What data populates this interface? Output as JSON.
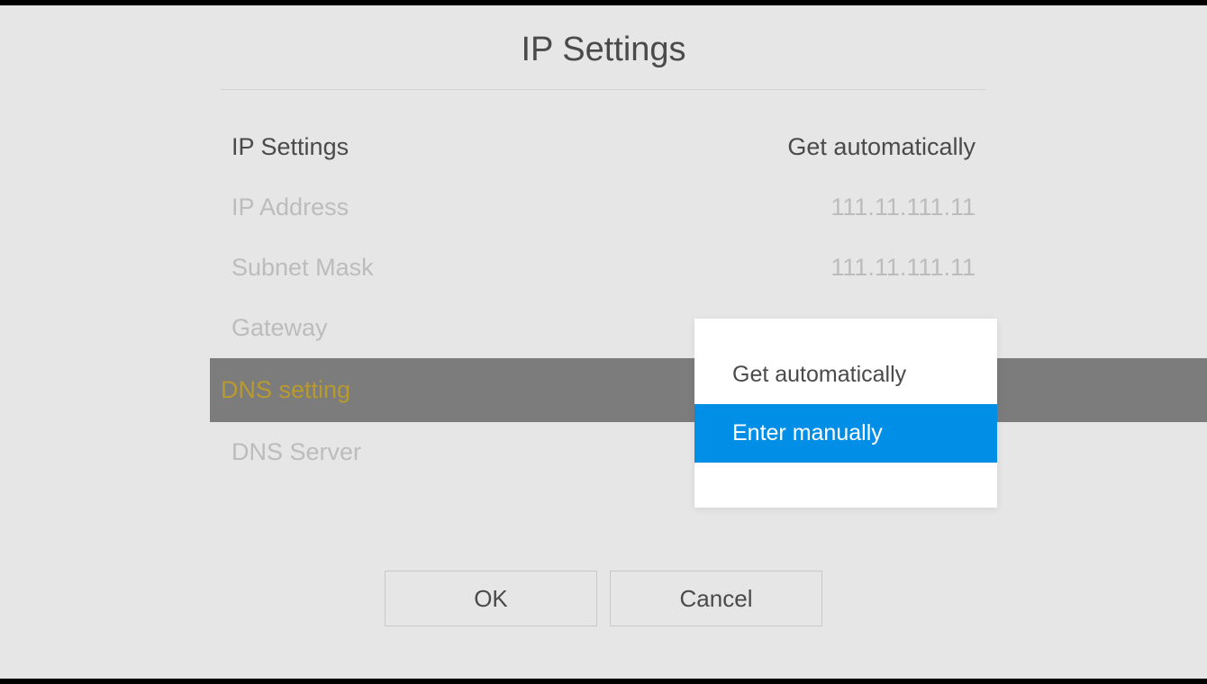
{
  "title": "IP Settings",
  "colors": {
    "page_background": "#e6e6e6",
    "top_bar": "#000000",
    "text_primary": "#4a4a4a",
    "text_disabled": "#bcbcbc",
    "selected_row_bg": "#7c7c7c",
    "selected_row_text": "#b89a2e",
    "dropdown_bg": "#ffffff",
    "dropdown_selected_bg": "#008ee6",
    "dropdown_selected_text": "#ffffff",
    "divider": "#d4d4d4",
    "button_border": "#c8c8c8"
  },
  "rows": {
    "ip_settings": {
      "label": "IP Settings",
      "value": "Get automatically",
      "state": "active"
    },
    "ip_address": {
      "label": "IP Address",
      "value": "111.11.111.11",
      "state": "inactive"
    },
    "subnet_mask": {
      "label": "Subnet Mask",
      "value": "111.11.111.11",
      "state": "inactive"
    },
    "gateway": {
      "label": "Gateway",
      "value": "",
      "state": "inactive"
    },
    "dns_setting": {
      "label": "DNS setting",
      "value": "",
      "state": "selected"
    },
    "dns_server": {
      "label": "DNS Server",
      "value": "",
      "state": "inactive"
    }
  },
  "dropdown": {
    "options": {
      "auto": {
        "label": "Get automatically",
        "selected": false
      },
      "manual": {
        "label": "Enter manually",
        "selected": true
      }
    }
  },
  "buttons": {
    "ok": "OK",
    "cancel": "Cancel"
  }
}
